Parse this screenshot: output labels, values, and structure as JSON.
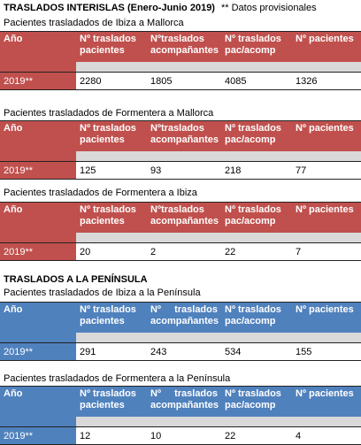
{
  "header": {
    "title": "TRASLADOS INTERISLAS (Enero-Junio 2019)",
    "note": "** Datos provisionales"
  },
  "peninsula_title": "TRASLADOS A LA PENÍNSULA",
  "sections": [
    {
      "caption": "Pacientes trasladados de Ibiza a Mallorca",
      "headers": [
        "Año",
        "Nº traslados pacientes",
        "Nºtraslados acompañantes",
        "Nº traslados pac/acomp",
        "Nº pacientes"
      ],
      "row": [
        "2019**",
        2280,
        1805,
        4085,
        1326
      ]
    },
    {
      "caption": "Pacientes trasladados de Formentera a Mallorca",
      "headers": [
        "Año",
        "Nº traslados pacientes",
        "Nºtraslados acompañantes",
        "Nº traslados pac/acomp",
        "Nº pacientes"
      ],
      "row": [
        "2019**",
        125,
        93,
        218,
        77
      ]
    },
    {
      "caption": "Pacientes trasladados de Formentera a Ibiza",
      "headers": [
        "Año",
        "Nº traslados pacientes",
        "Nºtraslados acompañantes",
        "Nº traslados pac/acomp",
        "Nº pacientes"
      ],
      "row": [
        "2019**",
        20,
        2,
        22,
        7
      ]
    },
    {
      "caption": "Pacientes trasladados de Ibiza a la Península",
      "headers": [
        "Año",
        "Nº traslados pacientes",
        "Nº traslados acompañantes",
        "Nº traslados pac/acomp",
        "Nº pacientes"
      ],
      "row": [
        "2019**",
        291,
        243,
        534,
        155
      ]
    },
    {
      "caption": "Pacientes trasladados de Formentera a la Península",
      "headers": [
        "Año",
        "Nº traslados pacientes",
        "Nº traslados acompañantes",
        "Nº traslados pac/acomp",
        "Nº pacientes"
      ],
      "row": [
        "2019**",
        12,
        10,
        22,
        4
      ]
    }
  ]
}
